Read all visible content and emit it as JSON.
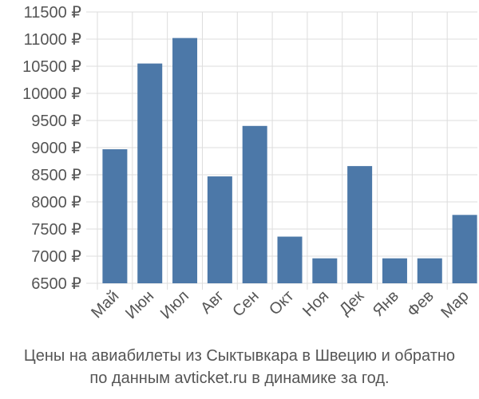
{
  "chart_data": {
    "type": "bar",
    "categories": [
      "Май",
      "Июн",
      "Июл",
      "Авг",
      "Сен",
      "Окт",
      "Ноя",
      "Дек",
      "Янв",
      "Фев",
      "Мар"
    ],
    "values": [
      8970,
      10550,
      11020,
      8470,
      9400,
      7360,
      6960,
      8660,
      6960,
      6960,
      7760
    ],
    "ylim": [
      6500,
      11500
    ],
    "yticks": [
      6500,
      7000,
      7500,
      8000,
      8500,
      9000,
      9500,
      10000,
      10500,
      11000,
      11500
    ],
    "ytick_labels": [
      "6500 ₽",
      "7000 ₽",
      "7500 ₽",
      "8000 ₽",
      "8500 ₽",
      "9000 ₽",
      "9500 ₽",
      "10000 ₽",
      "10500 ₽",
      "11000 ₽",
      "11500 ₽"
    ],
    "grid": true,
    "bar_color": "#4c78a8"
  },
  "caption": {
    "line1": "Цены на авиабилеты из Сыктывкара в Швецию и обратно",
    "line2": "по данным avticket.ru в динамике за год."
  }
}
